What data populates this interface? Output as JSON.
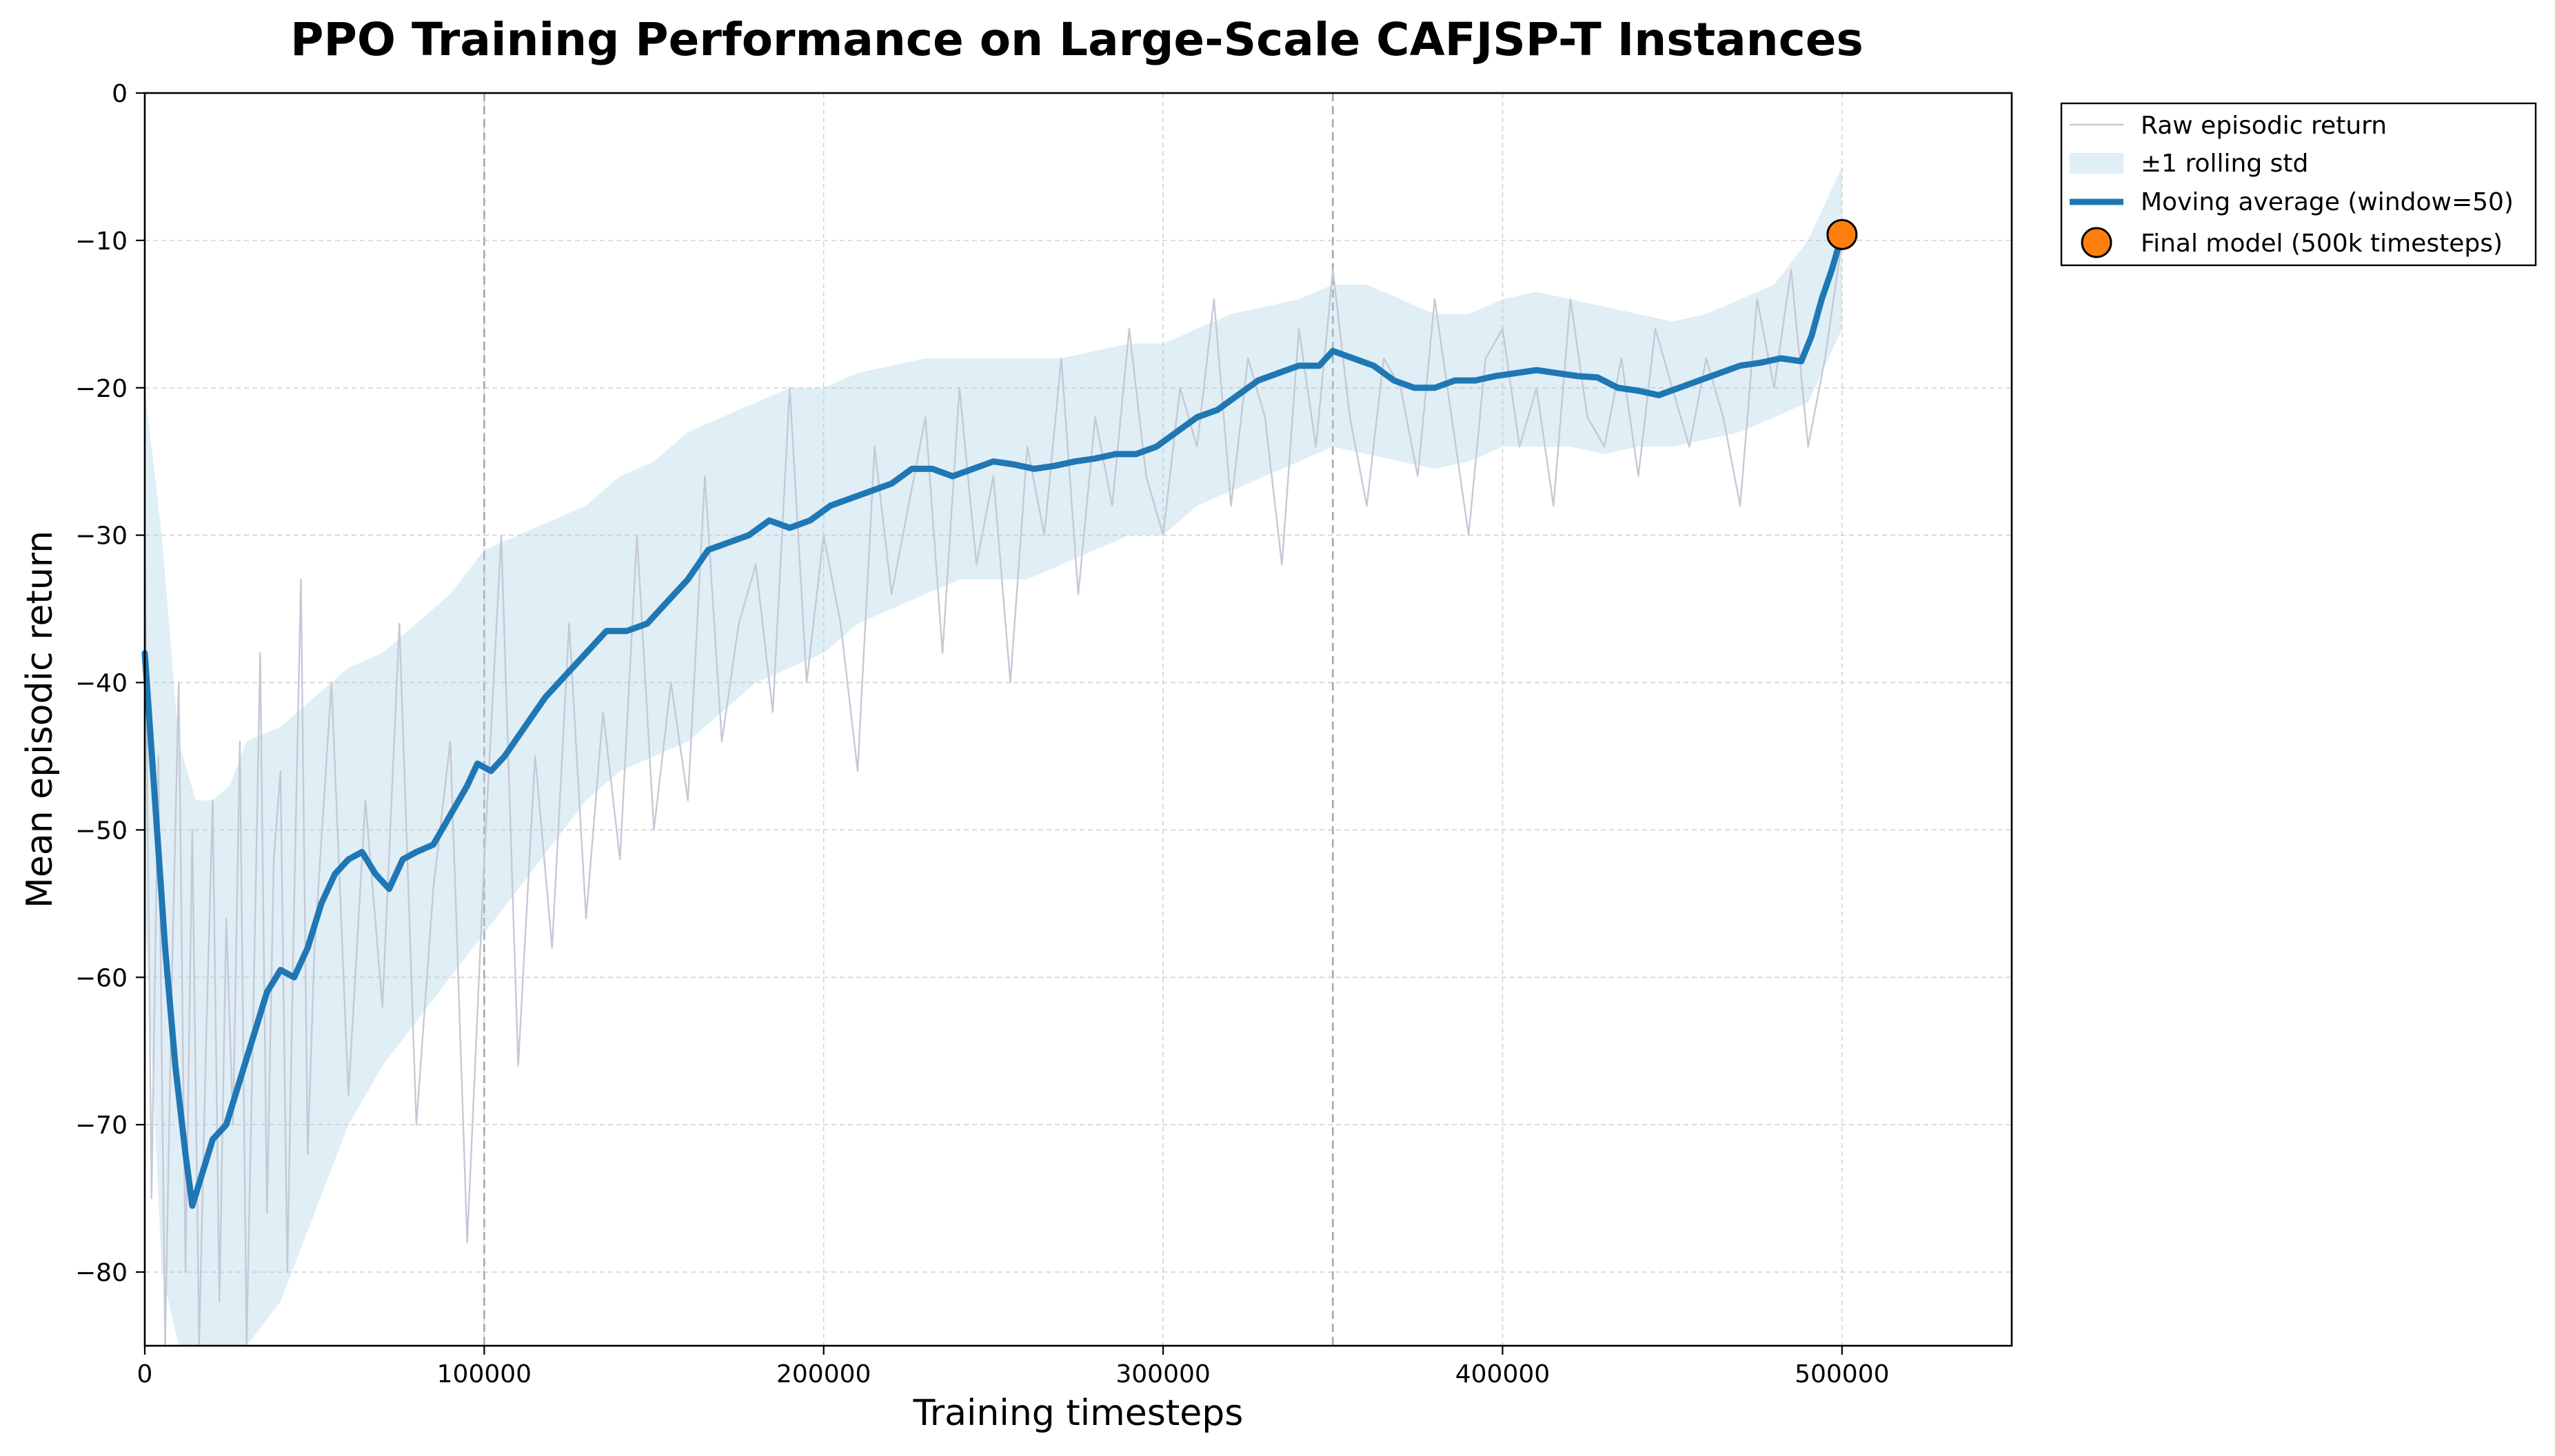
{
  "chart_data": {
    "type": "line",
    "title": "PPO Training Performance on Large-Scale CAFJSP-T Instances",
    "xlabel": "Training timesteps",
    "ylabel": "Mean episodic return",
    "xlim": [
      0,
      550000
    ],
    "ylim": [
      -85,
      0
    ],
    "xticks": [
      0,
      100000,
      200000,
      300000,
      400000,
      500000
    ],
    "yticks": [
      0,
      -10,
      -20,
      -30,
      -40,
      -50,
      -60,
      -70,
      -80
    ],
    "grid": true,
    "legend_position": "outside-top-right",
    "reference_lines_x": [
      100000,
      350000
    ],
    "series": [
      {
        "name": "Raw episodic return",
        "role": "raw",
        "color": "#c5c9d6",
        "x": [
          0,
          2000,
          4000,
          6000,
          8000,
          10000,
          12000,
          14000,
          16000,
          18000,
          20000,
          22000,
          24000,
          26000,
          28000,
          30000,
          32000,
          34000,
          36000,
          38000,
          40000,
          42000,
          44000,
          46000,
          48000,
          50000,
          55000,
          60000,
          65000,
          70000,
          75000,
          80000,
          85000,
          90000,
          95000,
          100000,
          105000,
          110000,
          115000,
          120000,
          125000,
          130000,
          135000,
          140000,
          145000,
          150000,
          155000,
          160000,
          165000,
          170000,
          175000,
          180000,
          185000,
          190000,
          195000,
          200000,
          205000,
          210000,
          215000,
          220000,
          225000,
          230000,
          235000,
          240000,
          245000,
          250000,
          255000,
          260000,
          265000,
          270000,
          275000,
          280000,
          285000,
          290000,
          295000,
          300000,
          305000,
          310000,
          315000,
          320000,
          325000,
          330000,
          335000,
          340000,
          345000,
          350000,
          355000,
          360000,
          365000,
          370000,
          375000,
          380000,
          385000,
          390000,
          395000,
          400000,
          405000,
          410000,
          415000,
          420000,
          425000,
          430000,
          435000,
          440000,
          445000,
          450000,
          455000,
          460000,
          465000,
          470000,
          475000,
          480000,
          485000,
          490000,
          495000,
          500000
        ],
        "y": [
          -30,
          -75,
          -45,
          -85,
          -60,
          -40,
          -80,
          -50,
          -85,
          -65,
          -48,
          -82,
          -56,
          -70,
          -44,
          -85,
          -62,
          -38,
          -76,
          -52,
          -46,
          -80,
          -55,
          -33,
          -72,
          -58,
          -40,
          -68,
          -48,
          -62,
          -36,
          -70,
          -54,
          -44,
          -78,
          -52,
          -30,
          -66,
          -45,
          -58,
          -36,
          -56,
          -42,
          -52,
          -30,
          -50,
          -40,
          -48,
          -26,
          -44,
          -36,
          -32,
          -42,
          -20,
          -40,
          -30,
          -36,
          -46,
          -24,
          -34,
          -28,
          -22,
          -38,
          -20,
          -32,
          -26,
          -40,
          -24,
          -30,
          -18,
          -34,
          -22,
          -28,
          -16,
          -26,
          -30,
          -20,
          -24,
          -14,
          -28,
          -18,
          -22,
          -32,
          -16,
          -24,
          -12,
          -22,
          -28,
          -18,
          -20,
          -26,
          -14,
          -22,
          -30,
          -18,
          -16,
          -24,
          -20,
          -28,
          -14,
          -22,
          -24,
          -18,
          -26,
          -16,
          -20,
          -24,
          -18,
          -22,
          -28,
          -14,
          -20,
          -12,
          -24,
          -18,
          -10
        ]
      },
      {
        "name": "±1 rolling std",
        "role": "band",
        "color": "#a6cee3",
        "x": [
          0,
          5000,
          10000,
          15000,
          20000,
          25000,
          30000,
          40000,
          50000,
          60000,
          70000,
          80000,
          90000,
          100000,
          110000,
          120000,
          130000,
          140000,
          150000,
          160000,
          170000,
          180000,
          190000,
          200000,
          210000,
          220000,
          230000,
          240000,
          250000,
          260000,
          270000,
          280000,
          290000,
          300000,
          310000,
          320000,
          330000,
          340000,
          350000,
          360000,
          370000,
          380000,
          390000,
          400000,
          410000,
          420000,
          430000,
          440000,
          450000,
          460000,
          470000,
          480000,
          490000,
          500000
        ],
        "upper": [
          -20,
          -30,
          -44,
          -48,
          -48,
          -47,
          -44,
          -43,
          -41,
          -39,
          -38,
          -36,
          -34,
          -31,
          -30,
          -29,
          -28,
          -26,
          -25,
          -23,
          -22,
          -21,
          -20,
          -20,
          -19,
          -18.5,
          -18,
          -18,
          -18,
          -18,
          -18,
          -17.5,
          -17,
          -17,
          -16,
          -15,
          -14.5,
          -14,
          -13,
          -13,
          -14,
          -15,
          -15,
          -14,
          -13.5,
          -14,
          -14.5,
          -15,
          -15.5,
          -15,
          -14,
          -13,
          -10,
          -5
        ],
        "lower": [
          -55,
          -80,
          -85,
          -85,
          -85,
          -85,
          -85,
          -82,
          -76,
          -70,
          -66,
          -63,
          -60,
          -57,
          -54,
          -51,
          -48,
          -46,
          -45,
          -44,
          -42,
          -40,
          -39,
          -38,
          -36,
          -35,
          -34,
          -33,
          -33,
          -33,
          -32,
          -31,
          -30,
          -30,
          -28,
          -27,
          -26,
          -25,
          -24,
          -24.5,
          -25,
          -25.5,
          -25,
          -24,
          -24,
          -24,
          -24.5,
          -24,
          -24,
          -23.5,
          -23,
          -22,
          -21,
          -16
        ]
      },
      {
        "name": "Moving average (window=50)",
        "role": "mean",
        "color": "#1f77b4",
        "x": [
          0,
          3000,
          6000,
          9000,
          12000,
          14000,
          16000,
          20000,
          24000,
          28000,
          32000,
          36000,
          40000,
          44000,
          48000,
          52000,
          56000,
          60000,
          64000,
          68000,
          72000,
          76000,
          80000,
          85000,
          90000,
          95000,
          98000,
          102000,
          106000,
          112000,
          118000,
          124000,
          130000,
          136000,
          142000,
          148000,
          154000,
          160000,
          166000,
          172000,
          178000,
          184000,
          190000,
          196000,
          202000,
          208000,
          214000,
          220000,
          226000,
          232000,
          238000,
          244000,
          250000,
          256000,
          262000,
          268000,
          274000,
          280000,
          286000,
          292000,
          298000,
          304000,
          310000,
          316000,
          322000,
          328000,
          334000,
          340000,
          346000,
          350000,
          356000,
          362000,
          368000,
          374000,
          380000,
          386000,
          392000,
          398000,
          404000,
          410000,
          416000,
          422000,
          428000,
          434000,
          440000,
          446000,
          452000,
          458000,
          464000,
          470000,
          476000,
          482000,
          488000,
          491000,
          494000,
          497000,
          500000
        ],
        "y": [
          -38,
          -48,
          -58,
          -66,
          -72,
          -75.5,
          -74,
          -71,
          -70,
          -67,
          -64,
          -61,
          -59.5,
          -60,
          -58,
          -55,
          -53,
          -52,
          -51.5,
          -53,
          -54,
          -52,
          -51.5,
          -51,
          -49,
          -47,
          -45.5,
          -46,
          -45,
          -43,
          -41,
          -39.5,
          -38,
          -36.5,
          -36.5,
          -36,
          -34.5,
          -33,
          -31,
          -30.5,
          -30,
          -29,
          -29.5,
          -29,
          -28,
          -27.5,
          -27,
          -26.5,
          -25.5,
          -25.5,
          -26,
          -25.5,
          -25,
          -25.2,
          -25.5,
          -25.3,
          -25,
          -24.8,
          -24.5,
          -24.5,
          -24,
          -23,
          -22,
          -21.5,
          -20.5,
          -19.5,
          -19,
          -18.5,
          -18.5,
          -17.5,
          -18,
          -18.5,
          -19.5,
          -20,
          -20,
          -19.5,
          -19.5,
          -19.2,
          -19,
          -18.8,
          -19,
          -19.2,
          -19.3,
          -20,
          -20.2,
          -20.5,
          -20,
          -19.5,
          -19,
          -18.5,
          -18.3,
          -18,
          -18.2,
          -16.5,
          -14,
          -12,
          -9.6
        ]
      }
    ],
    "final_model": {
      "name": "Final model (500k timesteps)",
      "x": 500000,
      "y": -9.6,
      "color": "#ff7f0e"
    }
  }
}
